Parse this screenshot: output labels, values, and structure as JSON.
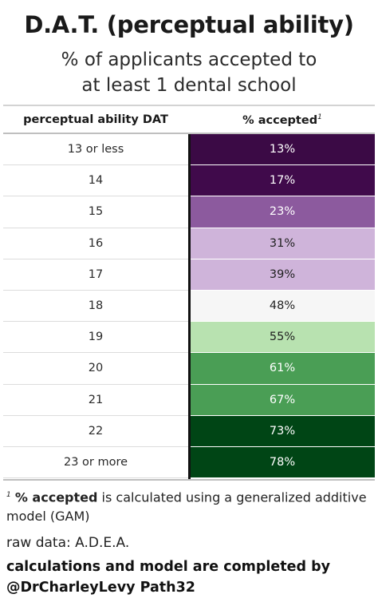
{
  "chart_data": {
    "type": "table",
    "title": "D.A.T. (perceptual ability)",
    "subtitle_lines": [
      "% of applicants accepted to",
      "at least 1 dental school"
    ],
    "columns": [
      "perceptual ability DAT",
      "% accepted"
    ],
    "footnote_mark": "1",
    "rows": [
      {
        "dat": "13 or less",
        "pct": 13,
        "label": "13%",
        "color": "#3b0a45",
        "text": "#ffffff"
      },
      {
        "dat": "14",
        "pct": 17,
        "label": "17%",
        "color": "#400a4b",
        "text": "#ffffff"
      },
      {
        "dat": "15",
        "pct": 23,
        "label": "23%",
        "color": "#8c5a9e",
        "text": "#ffffff"
      },
      {
        "dat": "16",
        "pct": 31,
        "label": "31%",
        "color": "#cfb4da",
        "text": "#222222"
      },
      {
        "dat": "17",
        "pct": 39,
        "label": "39%",
        "color": "#cfb4da",
        "text": "#222222"
      },
      {
        "dat": "18",
        "pct": 48,
        "label": "48%",
        "color": "#f6f6f6",
        "text": "#222222"
      },
      {
        "dat": "19",
        "pct": 55,
        "label": "55%",
        "color": "#b8e2b0",
        "text": "#222222"
      },
      {
        "dat": "20",
        "pct": 61,
        "label": "61%",
        "color": "#4a9e55",
        "text": "#ffffff"
      },
      {
        "dat": "21",
        "pct": 67,
        "label": "67%",
        "color": "#4a9e55",
        "text": "#ffffff"
      },
      {
        "dat": "22",
        "pct": 73,
        "label": "73%",
        "color": "#004515",
        "text": "#ffffff"
      },
      {
        "dat": "23 or more",
        "pct": 78,
        "label": "78%",
        "color": "#004515",
        "text": "#ffffff"
      }
    ]
  },
  "footnote": {
    "mark": "1",
    "bold": "% accepted",
    "rest": " is calculated using a generalized additive model (GAM)"
  },
  "raw_data": "raw data: A.D.E.A.",
  "credit_line1": "calculations and model are completed by",
  "credit_line2": "@DrCharleyLevy Path32"
}
